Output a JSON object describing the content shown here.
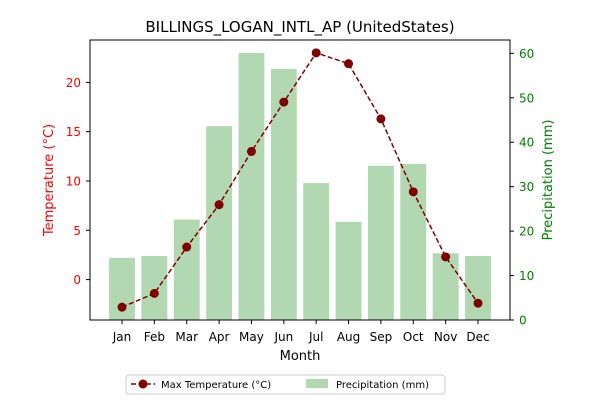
{
  "chart_data": {
    "type": "bar",
    "title": "BILLINGS_LOGAN_INTL_AP (UnitedStates)",
    "xlabel": "Month",
    "ylabel_left": "Temperature (°C)",
    "ylabel_right": "Precipitation (mm)",
    "categories": [
      "Jan",
      "Feb",
      "Mar",
      "Apr",
      "May",
      "Jun",
      "Jul",
      "Aug",
      "Sep",
      "Oct",
      "Nov",
      "Dec"
    ],
    "left_axis": {
      "ylim": [
        -4.1,
        24.3
      ],
      "ticks": [
        0,
        5,
        10,
        15,
        20
      ]
    },
    "right_axis": {
      "ylim": [
        0,
        63
      ],
      "ticks": [
        0,
        10,
        20,
        30,
        40,
        50,
        60
      ]
    },
    "series": [
      {
        "name": "Max Temperature (°C)",
        "type": "line",
        "axis": "left",
        "color": "#800000",
        "values": [
          -2.8,
          -1.4,
          3.3,
          7.6,
          13.0,
          18.0,
          23.0,
          21.9,
          16.3,
          8.9,
          2.3,
          -2.4
        ]
      },
      {
        "name": "Precipitation (mm)",
        "type": "bar",
        "axis": "right",
        "color": "#b2d8b2",
        "values": [
          14.0,
          14.4,
          22.6,
          43.6,
          60.1,
          56.5,
          30.8,
          22.1,
          34.7,
          35.1,
          15.0,
          14.4
        ]
      }
    ],
    "left_axis_color": "#ff0000",
    "right_axis_color": "#008000",
    "legend_position": "bottom-center",
    "grid": false
  }
}
